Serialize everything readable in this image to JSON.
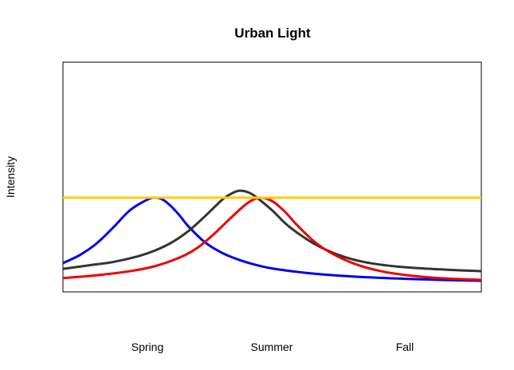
{
  "chart_data": {
    "type": "line",
    "title": "Urban Light",
    "xlabel": "",
    "ylabel": "Intensity",
    "x_ticks": [
      "Spring",
      "Summer",
      "Fall"
    ],
    "xlim": [
      0,
      1
    ],
    "ylim": [
      0,
      1
    ],
    "grid": false,
    "legend": "none",
    "series": [
      {
        "color": "#0000ee",
        "x": [
          0.0,
          0.04,
          0.08,
          0.12,
          0.16,
          0.2,
          0.22,
          0.24,
          0.26,
          0.28,
          0.3,
          0.34,
          0.38,
          0.42,
          0.46,
          0.5,
          0.56,
          0.62,
          0.7,
          0.8,
          0.9,
          1.0
        ],
        "y": [
          0.125,
          0.16,
          0.21,
          0.28,
          0.355,
          0.4,
          0.41,
          0.4,
          0.37,
          0.33,
          0.285,
          0.215,
          0.17,
          0.14,
          0.118,
          0.102,
          0.087,
          0.076,
          0.066,
          0.058,
          0.052,
          0.048
        ]
      },
      {
        "color": "#333333",
        "x": [
          0.0,
          0.06,
          0.12,
          0.18,
          0.22,
          0.26,
          0.3,
          0.34,
          0.38,
          0.4,
          0.42,
          0.44,
          0.46,
          0.5,
          0.54,
          0.6,
          0.66,
          0.72,
          0.8,
          0.9,
          1.0
        ],
        "y": [
          0.1,
          0.115,
          0.13,
          0.155,
          0.18,
          0.215,
          0.265,
          0.33,
          0.4,
          0.425,
          0.44,
          0.435,
          0.415,
          0.355,
          0.285,
          0.21,
          0.16,
          0.13,
          0.11,
          0.098,
          0.09
        ]
      },
      {
        "color": "#ee0000",
        "x": [
          0.0,
          0.08,
          0.16,
          0.22,
          0.28,
          0.32,
          0.36,
          0.4,
          0.44,
          0.47,
          0.5,
          0.53,
          0.56,
          0.6,
          0.64,
          0.7,
          0.76,
          0.82,
          0.9,
          1.0
        ],
        "y": [
          0.06,
          0.072,
          0.09,
          0.112,
          0.15,
          0.19,
          0.25,
          0.32,
          0.385,
          0.41,
          0.395,
          0.35,
          0.29,
          0.22,
          0.17,
          0.12,
          0.09,
          0.073,
          0.06,
          0.052
        ]
      },
      {
        "color": "#ffcc00",
        "x": [
          0.0,
          1.0
        ],
        "y": [
          0.41,
          0.41
        ]
      }
    ]
  }
}
